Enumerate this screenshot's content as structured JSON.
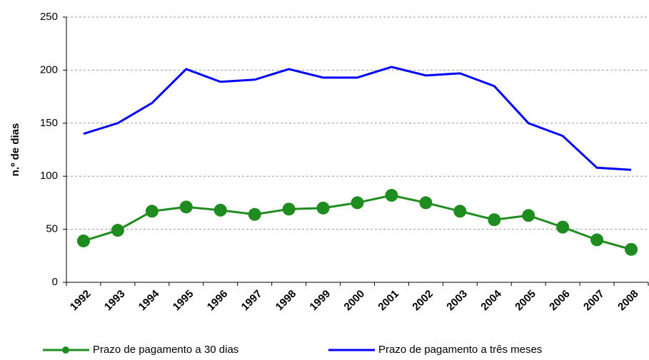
{
  "chart_data": {
    "type": "line",
    "y_label": "n.º de dias",
    "categories": [
      "1992",
      "1993",
      "1994",
      "1995",
      "1996",
      "1997",
      "1998",
      "1999",
      "2000",
      "2001",
      "2002",
      "2003",
      "2004",
      "2005",
      "2006",
      "2007",
      "2008"
    ],
    "series": [
      {
        "name": "Prazo de pagamento a 30 dias",
        "color": "#1e8c1e",
        "marker": true,
        "values": [
          39,
          49,
          67,
          71,
          68,
          64,
          69,
          70,
          75,
          82,
          75,
          67,
          59,
          63,
          52,
          40,
          31
        ]
      },
      {
        "name": "Prazo de pagamento a três meses",
        "color": "#0000ff",
        "marker": false,
        "values": [
          140,
          150,
          169,
          201,
          189,
          191,
          201,
          193,
          193,
          203,
          195,
          197,
          185,
          150,
          138,
          108,
          106
        ]
      }
    ],
    "ylim": [
      0,
      250
    ],
    "yticks": [
      0,
      50,
      100,
      150,
      200,
      250
    ],
    "grid": true,
    "legend": "bottom"
  }
}
